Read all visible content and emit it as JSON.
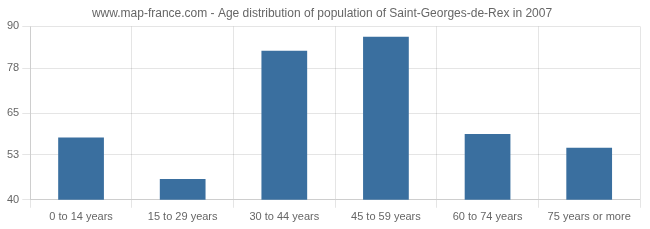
{
  "chart_data": {
    "type": "bar",
    "title": "www.map-france.com - Age distribution of population of Saint-Georges-de-Rex in 2007",
    "categories": [
      "0 to 14 years",
      "15 to 29 years",
      "30 to 44 years",
      "45 to 59 years",
      "60 to 74 years",
      "75 years or more"
    ],
    "values": [
      58,
      46,
      83,
      87,
      59,
      55
    ],
    "color": "#3a6f9f",
    "ylim": [
      40,
      90
    ],
    "yticks": [
      40,
      53,
      65,
      78,
      90
    ],
    "grid": true
  }
}
